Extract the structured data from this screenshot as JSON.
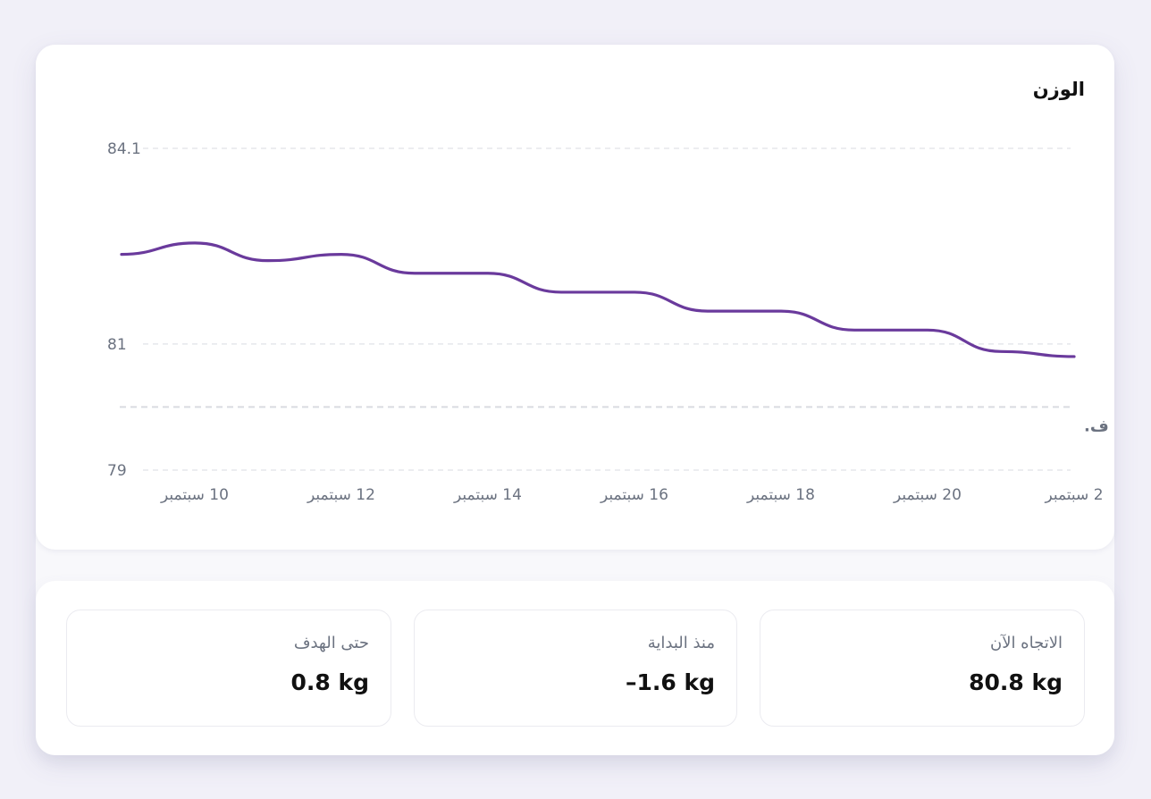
{
  "chart_title": "الوزن",
  "chart_data": {
    "type": "line",
    "title": "الوزن",
    "ylim": [
      79,
      84.1
    ],
    "y_ticks": [
      "84.1",
      "81",
      "79"
    ],
    "x_tick_labels": [
      "10 سبتمبر",
      "12 سبتمبر",
      "14 سبتمبر",
      "16 سبتمبر",
      "18 سبتمبر",
      "20 سبتمبر",
      "2 سبتمبر"
    ],
    "x": [
      "9 سبتمبر",
      "10 سبتمبر",
      "11 سبتمبر",
      "12 سبتمبر",
      "13 سبتمبر",
      "14 سبتمبر",
      "15 سبتمبر",
      "16 سبتمبر",
      "17 سبتمبر",
      "18 سبتمبر",
      "19 سبتمبر",
      "20 سبتمبر",
      "21 سبتمبر",
      "22 سبتمبر"
    ],
    "series": [
      {
        "values": [
          82.42,
          82.6,
          82.32,
          82.42,
          82.12,
          82.12,
          81.82,
          81.82,
          81.52,
          81.52,
          81.22,
          81.22,
          80.88,
          80.8
        ]
      }
    ],
    "goal": {
      "value": 80.0,
      "label": "ف."
    },
    "grid": true,
    "line_color": "#6a3a9c"
  },
  "stats": [
    {
      "label": "الاتجاه الآن",
      "value": "80.8 kg"
    },
    {
      "label": "منذ البداية",
      "value": "–1.6 kg"
    },
    {
      "label": "حتى الهدف",
      "value": "0.8 kg"
    }
  ]
}
